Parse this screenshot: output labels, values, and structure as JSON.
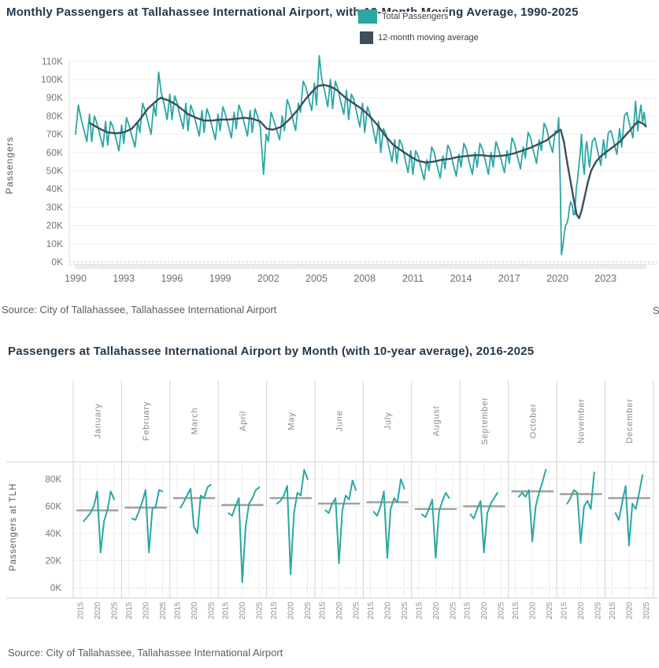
{
  "top_chart": {
    "title": "Monthly Passengers at Tallahassee International Airport, with 12-Month Moving Average, 1990-2025",
    "legend": [
      {
        "label": "Total Passengers",
        "color": "#2aa7a3"
      },
      {
        "label": "12-month moving average",
        "color": "#3d4e5c"
      }
    ],
    "source": "Source: City of Tallahassee, Tallahassee International Airport",
    "clipped_right_text": "S"
  },
  "bottom_chart": {
    "title": "Passengers at Tallahassee International Airport by Month (with 10-year average),  2016-2025",
    "source": "Source: City of Tallahassee, Tallahassee International Airport"
  },
  "chart_data": [
    {
      "type": "line",
      "title": "Monthly Passengers at Tallahassee International Airport, with 12-Month Moving Average, 1990-2025",
      "xlabel": "",
      "ylabel": "Passengers",
      "units": "thousands of passengers",
      "ylim": [
        0,
        115
      ],
      "yticks": [
        0,
        10,
        20,
        30,
        40,
        50,
        60,
        70,
        80,
        90,
        100,
        110
      ],
      "ytick_suffix": "K",
      "xticks": [
        1990,
        1993,
        1996,
        1999,
        2002,
        2005,
        2008,
        2011,
        2014,
        2017,
        2020,
        2023
      ],
      "x_range": [
        1990,
        2025.5
      ],
      "grid": "horizontal",
      "legend_position": "top-center",
      "series": [
        {
          "name": "Total Passengers",
          "color": "#2aa7a3",
          "note": "monthly values, estimated from plot",
          "sample_offsets": [
            0,
            0.17,
            0.33,
            0.5,
            0.7,
            0.87
          ],
          "yearly_samples": {
            "1990": [
              70,
              86,
              79,
              73,
              66,
              81
            ],
            "1991": [
              66,
              80,
              76,
              70,
              63,
              77
            ],
            "1992": [
              64,
              77,
              74,
              68,
              61,
              75
            ],
            "1993": [
              65,
              79,
              75,
              69,
              63,
              77
            ],
            "1994": [
              71,
              87,
              83,
              77,
              70,
              86
            ],
            "1995": [
              80,
              104,
              93,
              87,
              78,
              92
            ],
            "1996": [
              78,
              91,
              87,
              80,
              73,
              87
            ],
            "1997": [
              72,
              86,
              82,
              76,
              69,
              83
            ],
            "1998": [
              71,
              84,
              80,
              74,
              67,
              81
            ],
            "1999": [
              72,
              85,
              81,
              75,
              68,
              82
            ],
            "2000": [
              73,
              86,
              82,
              76,
              69,
              83
            ],
            "2001": [
              71,
              84,
              80,
              74,
              48,
              70
            ],
            "2002": [
              66,
              82,
              78,
              73,
              67,
              80
            ],
            "2003": [
              72,
              89,
              85,
              79,
              72,
              87
            ],
            "2004": [
              82,
              99,
              96,
              90,
              83,
              98
            ],
            "2005": [
              86,
              113,
              100,
              94,
              85,
              100
            ],
            "2006": [
              84,
              99,
              95,
              88,
              81,
              94
            ],
            "2007": [
              78,
              92,
              89,
              82,
              74,
              87
            ],
            "2008": [
              71,
              85,
              81,
              74,
              65,
              77
            ],
            "2009": [
              60,
              73,
              70,
              63,
              55,
              67
            ],
            "2010": [
              54,
              67,
              64,
              57,
              49,
              61
            ],
            "2011": [
              48,
              61,
              58,
              52,
              45,
              56
            ],
            "2012": [
              50,
              63,
              60,
              53,
              46,
              58
            ],
            "2013": [
              51,
              64,
              61,
              54,
              47,
              59
            ],
            "2014": [
              52,
              65,
              62,
              55,
              48,
              60
            ],
            "2015": [
              52,
              65,
              62,
              56,
              48,
              60
            ],
            "2016": [
              52,
              66,
              62,
              56,
              49,
              61
            ],
            "2017": [
              54,
              68,
              65,
              58,
              51,
              63
            ],
            "2018": [
              57,
              71,
              68,
              61,
              54,
              67
            ],
            "2019": [
              61,
              76,
              73,
              66,
              60,
              72
            ],
            "2022": [
              52,
              66,
              68,
              61,
              53,
              67
            ],
            "2023": [
              57,
              71,
              72,
              66,
              59,
              73
            ],
            "2024": [
              63,
              80,
              82,
              75,
              68,
              88
            ]
          },
          "extra_points": {
            "x": [
              2020.0,
              2020.08,
              2020.17,
              2020.25,
              2020.33,
              2020.42,
              2020.5,
              2020.58,
              2020.67,
              2020.75,
              2020.83,
              2020.92,
              2021.0,
              2021.08,
              2021.17,
              2021.25,
              2021.33,
              2021.42,
              2021.5,
              2021.58,
              2021.67,
              2021.75,
              2021.83,
              2021.92,
              2025.0,
              2025.1,
              2025.2,
              2025.3,
              2025.4,
              2025.5
            ],
            "y": [
              71,
              79,
              45,
              4,
              8,
              15,
              20,
              21,
              24,
              30,
              33,
              31,
              26,
              26,
              40,
              45,
              52,
              60,
              70,
              55,
              48,
              62,
              66,
              58,
              72,
              80,
              86,
              77,
              82,
              74
            ]
          }
        },
        {
          "name": "12-month moving average",
          "color": "#3d4e5c",
          "x": [
            1990.9,
            1991.5,
            1992,
            1992.5,
            1993,
            1993.5,
            1994,
            1994.5,
            1995,
            1995.3,
            1995.8,
            1996.3,
            1997,
            1997.5,
            1998,
            1998.5,
            1999,
            1999.5,
            2000,
            2000.5,
            2001,
            2001.5,
            2001.9,
            2002.3,
            2002.8,
            2003.3,
            2003.8,
            2004.3,
            2004.8,
            2005.1,
            2005.5,
            2005.9,
            2006.3,
            2006.8,
            2007.3,
            2007.8,
            2008.3,
            2008.8,
            2009.3,
            2009.8,
            2010.3,
            2010.8,
            2011.3,
            2011.8,
            2012.3,
            2012.8,
            2013.3,
            2013.8,
            2014.3,
            2014.8,
            2015.3,
            2015.8,
            2016.3,
            2016.8,
            2017.3,
            2017.8,
            2018.3,
            2018.8,
            2019.3,
            2019.8,
            2020.2,
            2020.4,
            2020.6,
            2020.8,
            2021.0,
            2021.2,
            2021.35,
            2021.5,
            2021.7,
            2021.9,
            2022.1,
            2022.4,
            2022.7,
            2023.0,
            2023.3,
            2023.6,
            2023.9,
            2024.2,
            2024.5,
            2024.8,
            2025.0,
            2025.3,
            2025.5
          ],
          "y": [
            76,
            73,
            71,
            70.5,
            71,
            73,
            78,
            84,
            88,
            90,
            88.5,
            86,
            81,
            79,
            77.5,
            77.5,
            78,
            78,
            78.5,
            79,
            78.5,
            77,
            73,
            72.5,
            74,
            78,
            83,
            89,
            94,
            96.5,
            97,
            96,
            94,
            90,
            87,
            84,
            80,
            75,
            69,
            64,
            61,
            58,
            55.5,
            54.5,
            55,
            56,
            56.5,
            57.5,
            58,
            58.5,
            58.5,
            58,
            58,
            58.5,
            59.5,
            61,
            62.5,
            64.5,
            66.5,
            70,
            72.5,
            66,
            55,
            45,
            35,
            26,
            24,
            28,
            36,
            44,
            50,
            55,
            58,
            60,
            62,
            64,
            66,
            69,
            72,
            75,
            77,
            76,
            74.5
          ]
        }
      ]
    },
    {
      "type": "line",
      "layout": "small-multiples-by-month",
      "title": "Passengers at Tallahassee International Airport by Month (with 10-year average),  2016-2025",
      "ylabel": "Passengers at TLH",
      "units": "thousands of passengers",
      "ylim": [
        0,
        90
      ],
      "yticks": [
        0,
        20,
        40,
        60,
        80
      ],
      "ytick_suffix": "K",
      "xticks": [
        2015,
        2020,
        2025
      ],
      "average_line_color": "#9e9e9e",
      "series_color": "#2aa7a3",
      "panels": [
        {
          "month": "January",
          "years": [
            2016,
            2017,
            2018,
            2019,
            2020,
            2021,
            2022,
            2023,
            2024,
            2025
          ],
          "values": [
            49,
            52,
            55,
            60,
            71,
            26,
            49,
            57,
            71,
            65
          ],
          "ten_year_average": 57
        },
        {
          "month": "February",
          "years": [
            2016,
            2017,
            2018,
            2019,
            2020,
            2021,
            2022,
            2023,
            2024,
            2025
          ],
          "values": [
            51,
            50,
            56,
            63,
            72,
            26,
            58,
            60,
            72,
            71
          ],
          "ten_year_average": 59
        },
        {
          "month": "March",
          "years": [
            2016,
            2017,
            2018,
            2019,
            2020,
            2021,
            2022,
            2023,
            2024,
            2025
          ],
          "values": [
            59,
            63,
            68,
            73,
            45,
            40,
            68,
            66,
            74,
            76
          ],
          "ten_year_average": 66
        },
        {
          "month": "April",
          "years": [
            2016,
            2017,
            2018,
            2019,
            2020,
            2021,
            2022,
            2023,
            2024,
            2025
          ],
          "values": [
            55,
            53,
            60,
            66,
            4,
            45,
            62,
            66,
            72,
            74
          ],
          "ten_year_average": 61
        },
        {
          "month": "May",
          "years": [
            2016,
            2017,
            2018,
            2019,
            2020,
            2021,
            2022,
            2023,
            2024,
            2025
          ],
          "values": [
            62,
            64,
            68,
            75,
            10,
            55,
            70,
            68,
            87,
            80
          ],
          "ten_year_average": 66
        },
        {
          "month": "June",
          "years": [
            2016,
            2017,
            2018,
            2019,
            2020,
            2021,
            2022,
            2023,
            2024,
            2025
          ],
          "values": [
            57,
            55,
            62,
            66,
            18,
            57,
            68,
            65,
            79,
            72
          ],
          "ten_year_average": 62
        },
        {
          "month": "July",
          "years": [
            2016,
            2017,
            2018,
            2019,
            2020,
            2021,
            2022,
            2023,
            2024,
            2025
          ],
          "values": [
            56,
            53,
            60,
            71,
            22,
            58,
            66,
            63,
            80,
            73
          ],
          "ten_year_average": 63
        },
        {
          "month": "August",
          "years": [
            2016,
            2017,
            2018,
            2019,
            2020,
            2021,
            2022,
            2023,
            2024
          ],
          "values": [
            54,
            52,
            58,
            65,
            22,
            56,
            64,
            70,
            66
          ],
          "ten_year_average": 58
        },
        {
          "month": "September",
          "years": [
            2016,
            2017,
            2018,
            2019,
            2020,
            2021,
            2022,
            2023,
            2024
          ],
          "values": [
            54,
            51,
            58,
            64,
            26,
            55,
            62,
            66,
            70
          ],
          "ten_year_average": 60
        },
        {
          "month": "October",
          "years": [
            2016,
            2017,
            2018,
            2019,
            2020,
            2021,
            2022,
            2023,
            2024
          ],
          "values": [
            67,
            70,
            67,
            72,
            34,
            60,
            70,
            78,
            87
          ],
          "ten_year_average": 71
        },
        {
          "month": "November",
          "years": [
            2016,
            2017,
            2018,
            2019,
            2020,
            2021,
            2022,
            2023,
            2024
          ],
          "values": [
            62,
            66,
            72,
            70,
            33,
            60,
            64,
            58,
            85
          ],
          "ten_year_average": 69
        },
        {
          "month": "December",
          "years": [
            2016,
            2017,
            2018,
            2019,
            2020,
            2021,
            2022,
            2023,
            2024
          ],
          "values": [
            55,
            50,
            63,
            75,
            31,
            62,
            58,
            70,
            83
          ],
          "ten_year_average": 66
        }
      ]
    }
  ]
}
